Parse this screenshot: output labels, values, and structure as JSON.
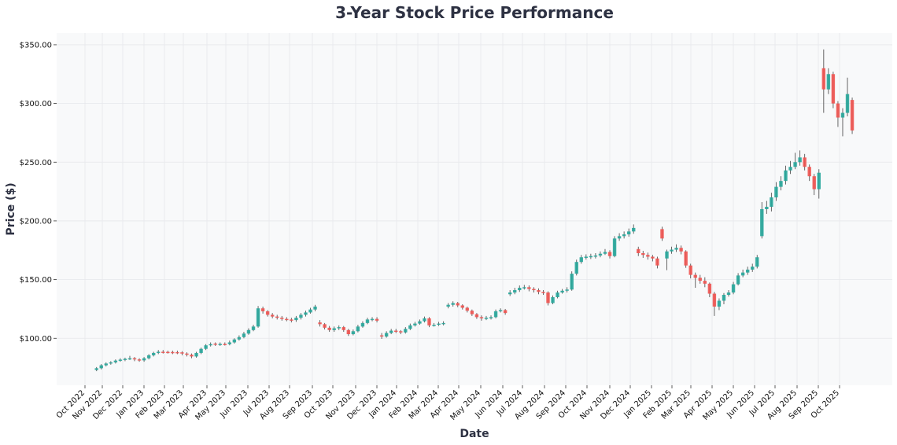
{
  "chart_data": {
    "type": "candlestick",
    "title": "3-Year Stock Price Performance",
    "xlabel": "Date",
    "ylabel": "Price ($)",
    "ylim": [
      60,
      360
    ],
    "yticks": [
      "$100.00",
      "$150.00",
      "$200.00",
      "$250.00",
      "$300.00",
      "$350.00"
    ],
    "ytick_values": [
      100,
      150,
      200,
      250,
      300,
      350
    ],
    "xticks": [
      "Oct 2022",
      "Nov 2022",
      "Dec 2022",
      "Jan 2023",
      "Feb 2023",
      "Mar 2023",
      "Apr 2023",
      "May 2023",
      "Jun 2023",
      "Jul 2023",
      "Aug 2023",
      "Sep 2023",
      "Oct 2023",
      "Nov 2023",
      "Dec 2023",
      "Jan 2024",
      "Feb 2024",
      "Mar 2024",
      "Apr 2024",
      "May 2024",
      "Jun 2024",
      "Jul 2024",
      "Aug 2024",
      "Sep 2024",
      "Oct 2024",
      "Nov 2024",
      "Dec 2024",
      "Jan 2025",
      "Feb 2025",
      "Mar 2025",
      "Apr 2025",
      "May 2025",
      "Jun 2025",
      "Jul 2025",
      "Aug 2025",
      "Sep 2025",
      "Oct 2025"
    ],
    "grid": true,
    "colors": {
      "up": "#26a69a",
      "down": "#ef5350",
      "wick": "#555555",
      "plot_bg": "#f8f9fa",
      "grid": "#e6e8eb"
    },
    "columns": [
      "date",
      "open",
      "high",
      "low",
      "close"
    ],
    "candles": [
      [
        "2022-10-03",
        73,
        75.5,
        72,
        74.5
      ],
      [
        "2022-10-10",
        74.5,
        78,
        73.5,
        77
      ],
      [
        "2022-10-17",
        77,
        79.5,
        76,
        78.5
      ],
      [
        "2022-10-24",
        78.5,
        80.5,
        77.5,
        79.5
      ],
      [
        "2022-10-31",
        79.5,
        82,
        78.5,
        81
      ],
      [
        "2022-11-07",
        81,
        83,
        80,
        81.8
      ],
      [
        "2022-11-14",
        81.8,
        83.5,
        80.5,
        82.5
      ],
      [
        "2022-11-21",
        82.5,
        85,
        81.5,
        83
      ],
      [
        "2022-11-28",
        83,
        84,
        80.5,
        82
      ],
      [
        "2022-12-05",
        82,
        83,
        80,
        81.2
      ],
      [
        "2022-12-12",
        81.2,
        84,
        80,
        83
      ],
      [
        "2022-12-19",
        83,
        86.5,
        82,
        85.5
      ],
      [
        "2022-12-26",
        85.5,
        88.5,
        84.5,
        87.5
      ],
      [
        "2023-01-02",
        87.5,
        90,
        86.5,
        88.5
      ],
      [
        "2023-01-09",
        88.5,
        90,
        87,
        88.4
      ],
      [
        "2023-01-16",
        88.4,
        89.5,
        87,
        88.3
      ],
      [
        "2023-01-23",
        88.3,
        89.5,
        86.5,
        88.2
      ],
      [
        "2023-01-30",
        88.2,
        89.5,
        86.5,
        88
      ],
      [
        "2023-02-06",
        88,
        89,
        85.5,
        87
      ],
      [
        "2023-02-13",
        87,
        88,
        84.5,
        86
      ],
      [
        "2023-02-20",
        86,
        87,
        83,
        84.5
      ],
      [
        "2023-02-27",
        84.5,
        88.5,
        83.5,
        87.5
      ],
      [
        "2023-03-06",
        87.5,
        92,
        86.5,
        91
      ],
      [
        "2023-03-13",
        91,
        95,
        90,
        94
      ],
      [
        "2023-03-20",
        94,
        96.5,
        93,
        95
      ],
      [
        "2023-03-27",
        95.5,
        96.5,
        93.5,
        95
      ],
      [
        "2023-04-03",
        95,
        96.5,
        93.5,
        95.2
      ],
      [
        "2023-04-10",
        95.2,
        96.5,
        93.8,
        95
      ],
      [
        "2023-04-17",
        95,
        98,
        94,
        96.5
      ],
      [
        "2023-04-24",
        96.5,
        100,
        95.5,
        99
      ],
      [
        "2023-05-01",
        99,
        102.5,
        98,
        101
      ],
      [
        "2023-05-08",
        101,
        105.5,
        100,
        104
      ],
      [
        "2023-05-15",
        104,
        108.5,
        103,
        107
      ],
      [
        "2023-05-22",
        107,
        111.5,
        106,
        110
      ],
      [
        "2023-05-29",
        110,
        127.5,
        109,
        125.5
      ],
      [
        "2023-06-05",
        125.5,
        127,
        121,
        123
      ],
      [
        "2023-06-12",
        123,
        124,
        118.5,
        120
      ],
      [
        "2023-06-19",
        120,
        121.5,
        117,
        118.5
      ],
      [
        "2023-06-26",
        118.5,
        120,
        116,
        117.5
      ],
      [
        "2023-07-03",
        117.5,
        119,
        115,
        116.5
      ],
      [
        "2023-07-10",
        116.5,
        118,
        114.5,
        116
      ],
      [
        "2023-07-17",
        116,
        117.5,
        113.5,
        115.5
      ],
      [
        "2023-07-24",
        115.5,
        119,
        114,
        117.5
      ],
      [
        "2023-07-31",
        117.5,
        121.5,
        116,
        120
      ],
      [
        "2023-08-07",
        120,
        123.5,
        118.5,
        122
      ],
      [
        "2023-08-14",
        122,
        126,
        121,
        124.5
      ],
      [
        "2023-08-21",
        124.5,
        128.5,
        123,
        127
      ],
      [
        "2023-08-28",
        113.5,
        115.5,
        110,
        112
      ],
      [
        "2023-09-04",
        112,
        113,
        107.5,
        109
      ],
      [
        "2023-09-11",
        109,
        110.5,
        105.5,
        107
      ],
      [
        "2023-09-18",
        107,
        110,
        105.5,
        108.5
      ],
      [
        "2023-09-25",
        108.5,
        111,
        107,
        109.5
      ],
      [
        "2023-10-02",
        109.5,
        110.5,
        105.5,
        107
      ],
      [
        "2023-10-09",
        107,
        108,
        102,
        103.5
      ],
      [
        "2023-10-16",
        103.5,
        107.5,
        102.5,
        106
      ],
      [
        "2023-10-23",
        106,
        111.5,
        105,
        110
      ],
      [
        "2023-10-30",
        110,
        114.5,
        109,
        113
      ],
      [
        "2023-11-06",
        113,
        117.5,
        112,
        116
      ],
      [
        "2023-11-13",
        116,
        118,
        114.5,
        116.5
      ],
      [
        "2023-11-20",
        116.5,
        118,
        113.5,
        115
      ],
      [
        "2023-11-27",
        102.5,
        104.5,
        99.5,
        101.5
      ],
      [
        "2023-12-04",
        101.5,
        106,
        100.5,
        104.5
      ],
      [
        "2023-12-11",
        104.5,
        108,
        103.5,
        106.5
      ],
      [
        "2023-12-18",
        106.5,
        108,
        104.5,
        106
      ],
      [
        "2023-12-25",
        106,
        107,
        103.5,
        105
      ],
      [
        "2024-01-01",
        105,
        109.5,
        104,
        108
      ],
      [
        "2024-01-08",
        108,
        112.5,
        107,
        111
      ],
      [
        "2024-01-15",
        111,
        114,
        110,
        112.5
      ],
      [
        "2024-01-22",
        112.5,
        116,
        111.5,
        114.5
      ],
      [
        "2024-01-29",
        114.5,
        118.5,
        113.5,
        117
      ],
      [
        "2024-02-05",
        117,
        118,
        109.5,
        111
      ],
      [
        "2024-02-12",
        111,
        113,
        110,
        111.5
      ],
      [
        "2024-02-19",
        111.5,
        114,
        110.5,
        112.5
      ],
      [
        "2024-02-26",
        112.5,
        114.5,
        111,
        113
      ],
      [
        "2024-03-04",
        127,
        130,
        125.5,
        128.5
      ],
      [
        "2024-03-11",
        128.5,
        131.5,
        127,
        130
      ],
      [
        "2024-03-18",
        130,
        131,
        126.5,
        128
      ],
      [
        "2024-03-25",
        128,
        129,
        124.5,
        126
      ],
      [
        "2024-04-01",
        126,
        127,
        122,
        123.5
      ],
      [
        "2024-04-08",
        123.5,
        124.5,
        119,
        120.5
      ],
      [
        "2024-04-15",
        120.5,
        121.5,
        116.5,
        118
      ],
      [
        "2024-04-22",
        118,
        119.5,
        115,
        117
      ],
      [
        "2024-04-29",
        117,
        119,
        115.5,
        117.5
      ],
      [
        "2024-05-06",
        117.5,
        119.5,
        116,
        118
      ],
      [
        "2024-05-13",
        118,
        124.5,
        117,
        123
      ],
      [
        "2024-05-20",
        123,
        125.5,
        122,
        124
      ],
      [
        "2024-05-27",
        124,
        125,
        120,
        121.5
      ],
      [
        "2024-06-03",
        137.5,
        141,
        136,
        139
      ],
      [
        "2024-06-10",
        139,
        143,
        137.5,
        141
      ],
      [
        "2024-06-17",
        141,
        145,
        139.5,
        143
      ],
      [
        "2024-06-24",
        143,
        145.5,
        141.5,
        143.5
      ],
      [
        "2024-07-01",
        143.5,
        145,
        140,
        142
      ],
      [
        "2024-07-08",
        142,
        143.5,
        139,
        141
      ],
      [
        "2024-07-15",
        141,
        142.5,
        137.5,
        139.5
      ],
      [
        "2024-07-22",
        139.5,
        141,
        137,
        139
      ],
      [
        "2024-07-29",
        139,
        140,
        128,
        130
      ],
      [
        "2024-08-05",
        130,
        136.5,
        129,
        135
      ],
      [
        "2024-08-12",
        135,
        140.5,
        134,
        139
      ],
      [
        "2024-08-19",
        139,
        142,
        138,
        140.5
      ],
      [
        "2024-08-26",
        140.5,
        143.5,
        139,
        141.5
      ],
      [
        "2024-09-02",
        141.5,
        157,
        140.5,
        155
      ],
      [
        "2024-09-09",
        155,
        167,
        153.5,
        165
      ],
      [
        "2024-09-16",
        165,
        171,
        163.5,
        169
      ],
      [
        "2024-09-23",
        169,
        171.5,
        167,
        169.5
      ],
      [
        "2024-09-30",
        169.5,
        172,
        167.5,
        170
      ],
      [
        "2024-10-07",
        170,
        172.5,
        168,
        170.5
      ],
      [
        "2024-10-14",
        170.5,
        174,
        169,
        172
      ],
      [
        "2024-10-21",
        172,
        176,
        171,
        173.5
      ],
      [
        "2024-10-28",
        173.5,
        175,
        168,
        170
      ],
      [
        "2024-11-04",
        170,
        187,
        169,
        185
      ],
      [
        "2024-11-11",
        185,
        189.5,
        183,
        187
      ],
      [
        "2024-11-18",
        187,
        191,
        185,
        188.5
      ],
      [
        "2024-11-25",
        188.5,
        193.5,
        186.5,
        191
      ],
      [
        "2024-12-02",
        191,
        197,
        189,
        194
      ],
      [
        "2024-12-09",
        176,
        178,
        170,
        172.5
      ],
      [
        "2024-12-16",
        172.5,
        174.5,
        168.5,
        171
      ],
      [
        "2024-12-23",
        171,
        173,
        167,
        169.5
      ],
      [
        "2024-12-30",
        169.5,
        171,
        165.5,
        168
      ],
      [
        "2025-01-06",
        168,
        169.5,
        159.5,
        162
      ],
      [
        "2025-01-13",
        193,
        195,
        183,
        185
      ],
      [
        "2025-01-20",
        168,
        175.5,
        158,
        174
      ],
      [
        "2025-01-27",
        174,
        178,
        172,
        175.5
      ],
      [
        "2025-02-03",
        175.5,
        180,
        173.5,
        177
      ],
      [
        "2025-02-10",
        177,
        179,
        171.5,
        174
      ],
      [
        "2025-02-17",
        174,
        175,
        160,
        162
      ],
      [
        "2025-02-24",
        162,
        163.5,
        151,
        154
      ],
      [
        "2025-03-03",
        154,
        156,
        143,
        151.5
      ],
      [
        "2025-03-10",
        151.5,
        154,
        146.5,
        149
      ],
      [
        "2025-03-17",
        149,
        152,
        143.5,
        146.5
      ],
      [
        "2025-03-24",
        146.5,
        147.5,
        135,
        138
      ],
      [
        "2025-03-31",
        138,
        139.5,
        119,
        127
      ],
      [
        "2025-04-07",
        127,
        134,
        124,
        132
      ],
      [
        "2025-04-14",
        132,
        138.5,
        129,
        137
      ],
      [
        "2025-04-21",
        137,
        141,
        135.5,
        139
      ],
      [
        "2025-04-28",
        139,
        148,
        137.5,
        146
      ],
      [
        "2025-05-05",
        146,
        155.5,
        145,
        153.5
      ],
      [
        "2025-05-12",
        153.5,
        158.5,
        152,
        156
      ],
      [
        "2025-05-19",
        156,
        161,
        154,
        158.5
      ],
      [
        "2025-05-26",
        158.5,
        163.5,
        156.5,
        161
      ],
      [
        "2025-06-02",
        161,
        171,
        159.5,
        169
      ],
      [
        "2025-06-09",
        187,
        216,
        185,
        210
      ],
      [
        "2025-06-16",
        210,
        217,
        206,
        212
      ],
      [
        "2025-06-23",
        212,
        224,
        208,
        220
      ],
      [
        "2025-06-30",
        220,
        233,
        217,
        229
      ],
      [
        "2025-07-07",
        229,
        238,
        226,
        234
      ],
      [
        "2025-07-14",
        234,
        247,
        231,
        243
      ],
      [
        "2025-07-21",
        243,
        251,
        240,
        246
      ],
      [
        "2025-07-28",
        246,
        258,
        244,
        250
      ],
      [
        "2025-08-04",
        250,
        260,
        247,
        254
      ],
      [
        "2025-08-11",
        254,
        257,
        243,
        246
      ],
      [
        "2025-08-18",
        246,
        248,
        234,
        238
      ],
      [
        "2025-08-25",
        238,
        240,
        222,
        227
      ],
      [
        "2025-09-01",
        227,
        244,
        219,
        241
      ],
      [
        "2025-09-08",
        330,
        346,
        292,
        312
      ],
      [
        "2025-09-15",
        312,
        330,
        308,
        325
      ],
      [
        "2025-09-22",
        325,
        327,
        296,
        300
      ],
      [
        "2025-09-29",
        300,
        302,
        280,
        288
      ],
      [
        "2025-10-06",
        288,
        296,
        272,
        292
      ],
      [
        "2025-10-13",
        292,
        322,
        289,
        308
      ],
      [
        "2025-10-20",
        303,
        305,
        274,
        277
      ]
    ]
  }
}
